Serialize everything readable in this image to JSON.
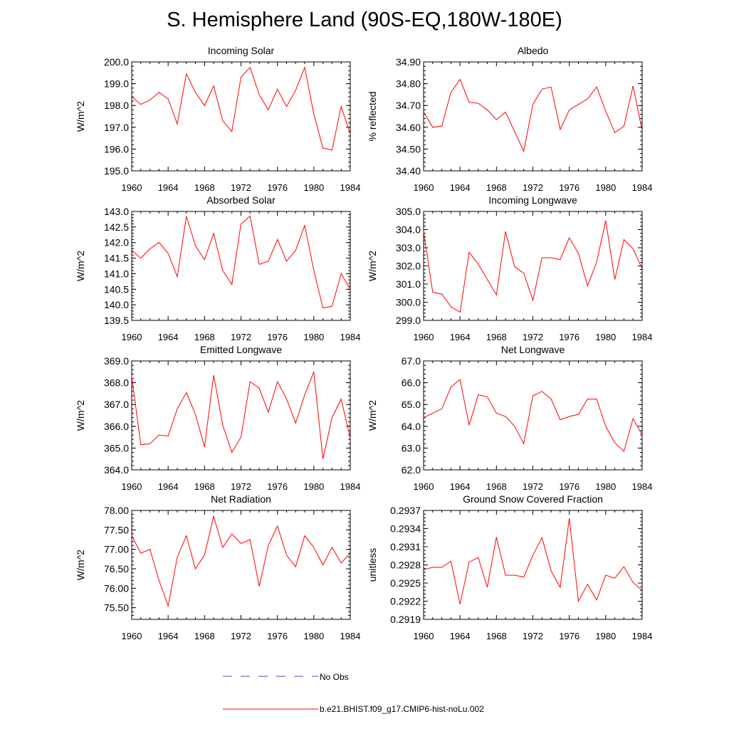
{
  "title": "S. Hemisphere Land (90S-EQ,180W-180E)",
  "colors": {
    "model_line": "#ff0000",
    "obs_line": "#4a4acb",
    "axis": "#000000"
  },
  "legend": {
    "obs_label": "No Obs",
    "model_label": "b.e21.BHIST.f09_g17.CMIP6-hist-noLu.002"
  },
  "chart_data": [
    {
      "type": "line",
      "title": "Incoming Solar",
      "xlabel": "",
      "ylabel": "W/m^2",
      "xlim": [
        1960,
        1984
      ],
      "ylim": [
        195.0,
        200.0
      ],
      "xticks": [
        "1960",
        "1964",
        "1968",
        "1972",
        "1976",
        "1980",
        "1984"
      ],
      "yticks": [
        "195.0",
        "196.0",
        "197.0",
        "198.0",
        "199.0",
        "200.0"
      ],
      "series": [
        {
          "name": "b.e21.BHIST.f09_g17.CMIP6-hist-noLu.002",
          "x": [
            1960,
            1961,
            1962,
            1963,
            1964,
            1965,
            1966,
            1967,
            1968,
            1969,
            1970,
            1971,
            1972,
            1973,
            1974,
            1975,
            1976,
            1977,
            1978,
            1979,
            1980,
            1981,
            1982,
            1983,
            1984
          ],
          "y": [
            198.4,
            198.05,
            198.25,
            198.6,
            198.3,
            197.15,
            199.45,
            198.6,
            198.0,
            198.9,
            197.3,
            196.8,
            199.3,
            199.75,
            198.5,
            197.8,
            198.75,
            197.95,
            198.7,
            199.75,
            197.6,
            196.05,
            195.95,
            197.95,
            196.7
          ]
        }
      ]
    },
    {
      "type": "line",
      "title": "Albedo",
      "xlabel": "",
      "ylabel": "% reflected",
      "xlim": [
        1960,
        1984
      ],
      "ylim": [
        34.4,
        34.9
      ],
      "xticks": [
        "1960",
        "1964",
        "1968",
        "1972",
        "1976",
        "1980",
        "1984"
      ],
      "yticks": [
        "34.40",
        "34.50",
        "34.60",
        "34.70",
        "34.80",
        "34.90"
      ],
      "series": [
        {
          "name": "b.e21.BHIST.f09_g17.CMIP6-hist-noLu.002",
          "x": [
            1960,
            1961,
            1962,
            1963,
            1964,
            1965,
            1966,
            1967,
            1968,
            1969,
            1970,
            1971,
            1972,
            1973,
            1974,
            1975,
            1976,
            1977,
            1978,
            1979,
            1980,
            1981,
            1982,
            1983,
            1984
          ],
          "y": [
            34.67,
            34.6,
            34.605,
            34.76,
            34.82,
            34.715,
            34.71,
            34.68,
            34.635,
            34.67,
            34.58,
            34.49,
            34.705,
            34.775,
            34.785,
            34.59,
            34.68,
            34.705,
            34.73,
            34.785,
            34.675,
            34.575,
            34.605,
            34.79,
            34.585
          ]
        }
      ]
    },
    {
      "type": "line",
      "title": "Absorbed Solar",
      "xlabel": "",
      "ylabel": "W/m^2",
      "xlim": [
        1960,
        1984
      ],
      "ylim": [
        139.5,
        143.0
      ],
      "xticks": [
        "1960",
        "1964",
        "1968",
        "1972",
        "1976",
        "1980",
        "1984"
      ],
      "yticks": [
        "139.5",
        "140.0",
        "140.5",
        "141.0",
        "141.5",
        "142.0",
        "142.5",
        "143.0"
      ],
      "series": [
        {
          "name": "b.e21.BHIST.f09_g17.CMIP6-hist-noLu.002",
          "x": [
            1960,
            1961,
            1962,
            1963,
            1964,
            1965,
            1966,
            1967,
            1968,
            1969,
            1970,
            1971,
            1972,
            1973,
            1974,
            1975,
            1976,
            1977,
            1978,
            1979,
            1980,
            1981,
            1982,
            1983,
            1984
          ],
          "y": [
            141.75,
            141.5,
            141.8,
            142.0,
            141.65,
            140.9,
            142.85,
            141.9,
            141.45,
            142.3,
            141.1,
            140.65,
            142.6,
            142.85,
            141.3,
            141.4,
            142.1,
            141.4,
            141.75,
            142.55,
            141.1,
            139.9,
            139.95,
            141.0,
            140.5
          ]
        }
      ]
    },
    {
      "type": "line",
      "title": "Incoming Longwave",
      "xlabel": "",
      "ylabel": "W/m^2",
      "xlim": [
        1960,
        1984
      ],
      "ylim": [
        299.0,
        305.0
      ],
      "xticks": [
        "1960",
        "1964",
        "1968",
        "1972",
        "1976",
        "1980",
        "1984"
      ],
      "yticks": [
        "299.0",
        "300.0",
        "301.0",
        "302.0",
        "303.0",
        "304.0",
        "305.0"
      ],
      "series": [
        {
          "name": "b.e21.BHIST.f09_g17.CMIP6-hist-noLu.002",
          "x": [
            1960,
            1961,
            1962,
            1963,
            1964,
            1965,
            1966,
            1967,
            1968,
            1969,
            1970,
            1971,
            1972,
            1973,
            1974,
            1975,
            1976,
            1977,
            1978,
            1979,
            1980,
            1981,
            1982,
            1983,
            1984
          ],
          "y": [
            303.9,
            300.55,
            300.45,
            299.75,
            299.45,
            302.75,
            302.1,
            301.25,
            300.4,
            303.9,
            301.95,
            301.6,
            300.1,
            302.45,
            302.45,
            302.35,
            303.55,
            302.7,
            300.9,
            302.2,
            304.5,
            301.25,
            303.45,
            302.95,
            301.85
          ]
        }
      ]
    },
    {
      "type": "line",
      "title": "Emitted Longwave",
      "xlabel": "",
      "ylabel": "W/m^2",
      "xlim": [
        1960,
        1984
      ],
      "ylim": [
        364.0,
        369.0
      ],
      "xticks": [
        "1960",
        "1964",
        "1968",
        "1972",
        "1976",
        "1980",
        "1984"
      ],
      "yticks": [
        "364.0",
        "365.0",
        "366.0",
        "367.0",
        "368.0",
        "369.0"
      ],
      "series": [
        {
          "name": "b.e21.BHIST.f09_g17.CMIP6-hist-noLu.002",
          "x": [
            1960,
            1961,
            1962,
            1963,
            1964,
            1965,
            1966,
            1967,
            1968,
            1969,
            1970,
            1971,
            1972,
            1973,
            1974,
            1975,
            1976,
            1977,
            1978,
            1979,
            1980,
            1981,
            1982,
            1983,
            1984
          ],
          "y": [
            368.3,
            365.15,
            365.2,
            365.6,
            365.55,
            366.8,
            367.55,
            366.55,
            365.05,
            368.35,
            366.05,
            364.8,
            365.5,
            368.05,
            367.75,
            366.65,
            368.05,
            367.25,
            366.15,
            367.45,
            368.5,
            364.5,
            366.4,
            367.25,
            365.45
          ]
        }
      ]
    },
    {
      "type": "line",
      "title": "Net Longwave",
      "xlabel": "",
      "ylabel": "W/m^2",
      "xlim": [
        1960,
        1984
      ],
      "ylim": [
        62.0,
        67.0
      ],
      "xticks": [
        "1960",
        "1964",
        "1968",
        "1972",
        "1976",
        "1980",
        "1984"
      ],
      "yticks": [
        "62.0",
        "63.0",
        "64.0",
        "65.0",
        "66.0",
        "67.0"
      ],
      "series": [
        {
          "name": "b.e21.BHIST.f09_g17.CMIP6-hist-noLu.002",
          "x": [
            1960,
            1961,
            1962,
            1963,
            1964,
            1965,
            1966,
            1967,
            1968,
            1969,
            1970,
            1971,
            1972,
            1973,
            1974,
            1975,
            1976,
            1977,
            1978,
            1979,
            1980,
            1981,
            1982,
            1983,
            1984
          ],
          "y": [
            64.4,
            64.6,
            64.8,
            65.8,
            66.15,
            64.05,
            65.45,
            65.35,
            64.6,
            64.45,
            64.0,
            63.2,
            65.4,
            65.6,
            65.25,
            64.3,
            64.45,
            64.55,
            65.25,
            65.25,
            64.0,
            63.25,
            62.85,
            64.35,
            63.6
          ]
        }
      ]
    },
    {
      "type": "line",
      "title": "Net Radiation",
      "xlabel": "",
      "ylabel": "W/m^2",
      "xlim": [
        1960,
        1984
      ],
      "ylim": [
        75.2,
        78.0
      ],
      "xticks": [
        "1960",
        "1964",
        "1968",
        "1972",
        "1976",
        "1980",
        "1984"
      ],
      "yticks": [
        "75.50",
        "76.00",
        "76.50",
        "77.00",
        "77.50",
        "78.00"
      ],
      "series": [
        {
          "name": "b.e21.BHIST.f09_g17.CMIP6-hist-noLu.002",
          "x": [
            1960,
            1961,
            1962,
            1963,
            1964,
            1965,
            1966,
            1967,
            1968,
            1969,
            1970,
            1971,
            1972,
            1973,
            1974,
            1975,
            1976,
            1977,
            1978,
            1979,
            1980,
            1981,
            1982,
            1983,
            1984
          ],
          "y": [
            77.35,
            76.9,
            77.0,
            76.2,
            75.55,
            76.8,
            77.35,
            76.5,
            76.85,
            77.85,
            77.05,
            77.4,
            77.15,
            77.25,
            76.05,
            77.1,
            77.6,
            76.85,
            76.55,
            77.35,
            77.05,
            76.6,
            77.05,
            76.65,
            76.9
          ]
        }
      ]
    },
    {
      "type": "line",
      "title": "Ground Snow Covered Fraction",
      "xlabel": "",
      "ylabel": "unitless",
      "xlim": [
        1960,
        1984
      ],
      "ylim": [
        0.2919,
        0.2937
      ],
      "xticks": [
        "1960",
        "1964",
        "1968",
        "1972",
        "1976",
        "1980",
        "1984"
      ],
      "yticks": [
        "0.2919",
        "0.2922",
        "0.2925",
        "0.2928",
        "0.2931",
        "0.2934",
        "0.2937"
      ],
      "series": [
        {
          "name": "b.e21.BHIST.f09_g17.CMIP6-hist-noLu.002",
          "x": [
            1960,
            1961,
            1962,
            1963,
            1964,
            1965,
            1966,
            1967,
            1968,
            1969,
            1970,
            1971,
            1972,
            1973,
            1974,
            1975,
            1976,
            1977,
            1978,
            1979,
            1980,
            1981,
            1982,
            1983,
            1984
          ],
          "y": [
            0.29272,
            0.29276,
            0.29276,
            0.29286,
            0.29215,
            0.29285,
            0.29292,
            0.29243,
            0.29326,
            0.29263,
            0.29263,
            0.2926,
            0.29296,
            0.29325,
            0.2927,
            0.29243,
            0.29357,
            0.2922,
            0.29248,
            0.29222,
            0.29263,
            0.29258,
            0.29277,
            0.29251,
            0.29238
          ]
        }
      ]
    }
  ]
}
